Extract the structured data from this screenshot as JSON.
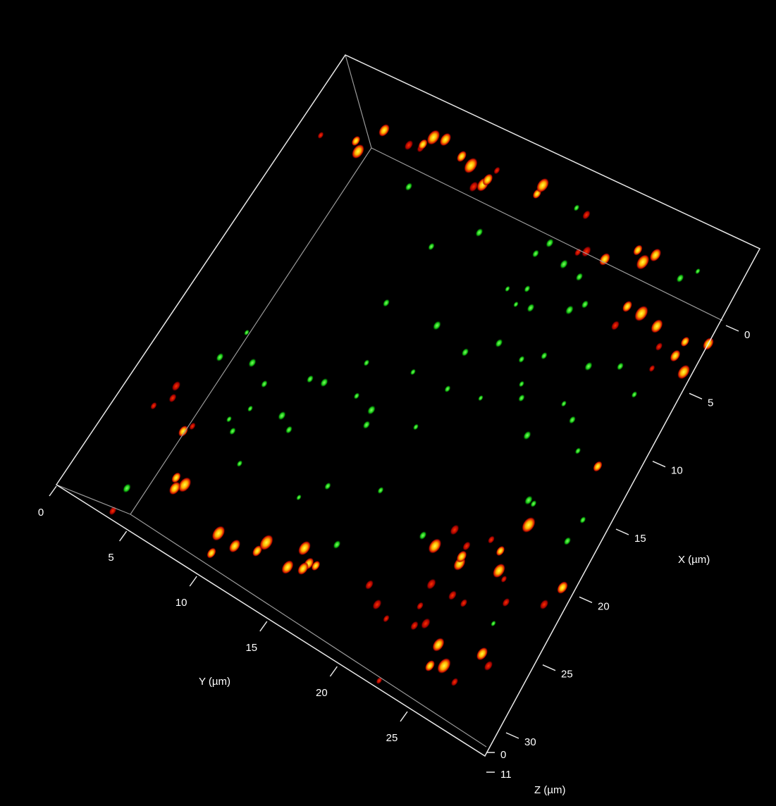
{
  "axes": {
    "x": {
      "label": "X (µm)",
      "ticks": [
        0,
        5,
        10,
        15,
        20,
        25,
        30
      ]
    },
    "y": {
      "label": "Y (µm)",
      "ticks": [
        0,
        5,
        10,
        15,
        20,
        25
      ]
    },
    "z": {
      "label": "Z (µm)",
      "ticks": [
        0,
        11
      ]
    }
  }
}
